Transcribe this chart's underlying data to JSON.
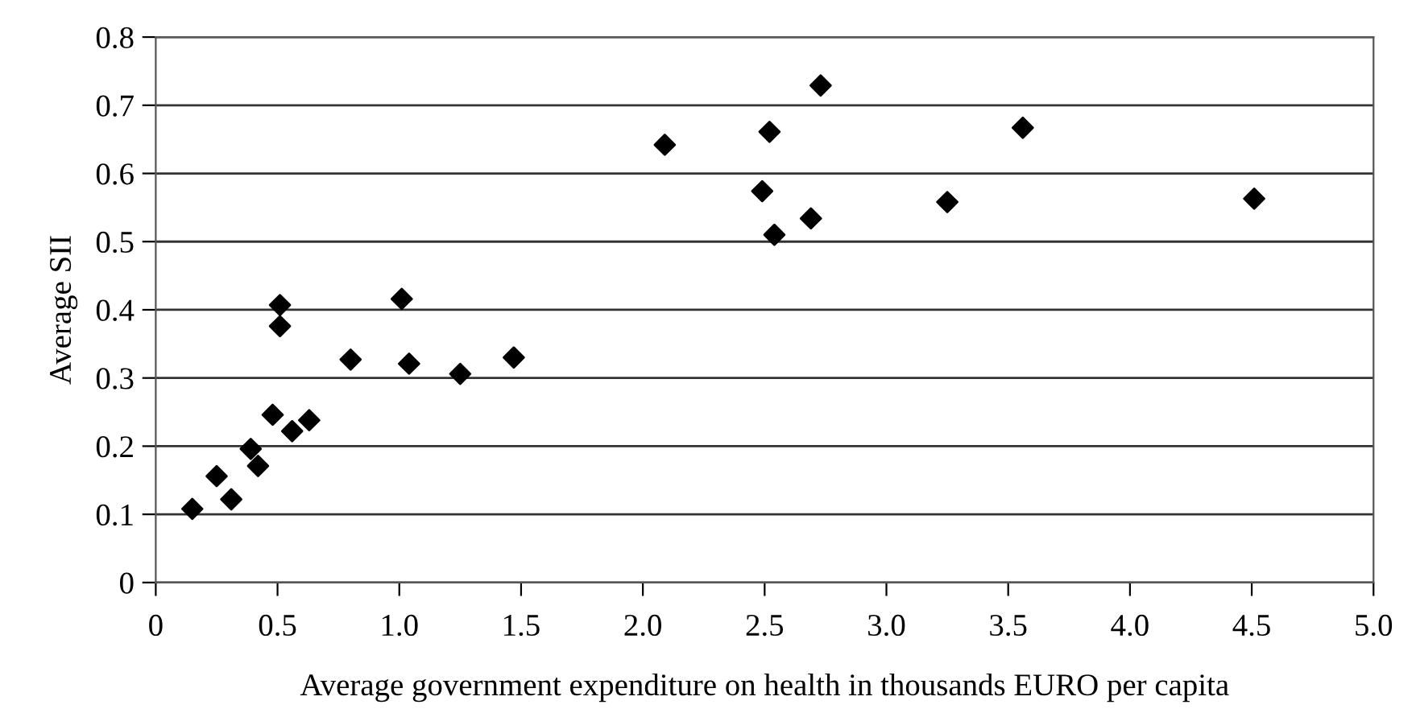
{
  "chart_data": {
    "type": "scatter",
    "xlabel": "Average government expenditure on health in thousands EURO per capita",
    "ylabel": "Average SII",
    "x": [
      0.15,
      0.25,
      0.31,
      0.39,
      0.42,
      0.48,
      0.56,
      0.63,
      0.51,
      0.51,
      0.8,
      1.01,
      1.04,
      1.25,
      1.47,
      2.09,
      2.52,
      2.73,
      3.56,
      2.49,
      2.69,
      2.54,
      3.25,
      4.51
    ],
    "series": [
      {
        "color": "#000000",
        "values": [
          0.108,
          0.156,
          0.122,
          0.196,
          0.171,
          0.246,
          0.222,
          0.238,
          0.407,
          0.376,
          0.327,
          0.416,
          0.321,
          0.306,
          0.33,
          0.642,
          0.661,
          0.729,
          0.667,
          0.574,
          0.534,
          0.51,
          0.558,
          0.563
        ]
      }
    ],
    "xlim": [
      0,
      5
    ],
    "xticks": [
      0,
      0.5,
      {
        "value": 1,
        "label": "1.0"
      },
      1.5,
      {
        "value": 2,
        "label": "2.0"
      },
      2.5,
      {
        "value": 3,
        "label": "3.0"
      },
      3.5,
      {
        "value": 4,
        "label": "4.0"
      },
      4.5,
      {
        "value": 5,
        "label": "5.0"
      }
    ],
    "ylim": [
      0,
      0.8
    ],
    "yticks": [
      0,
      0.1,
      0.2,
      0.3,
      0.4,
      0.5,
      0.6,
      0.7,
      0.8
    ],
    "grid": "y",
    "marker": "diamond"
  }
}
